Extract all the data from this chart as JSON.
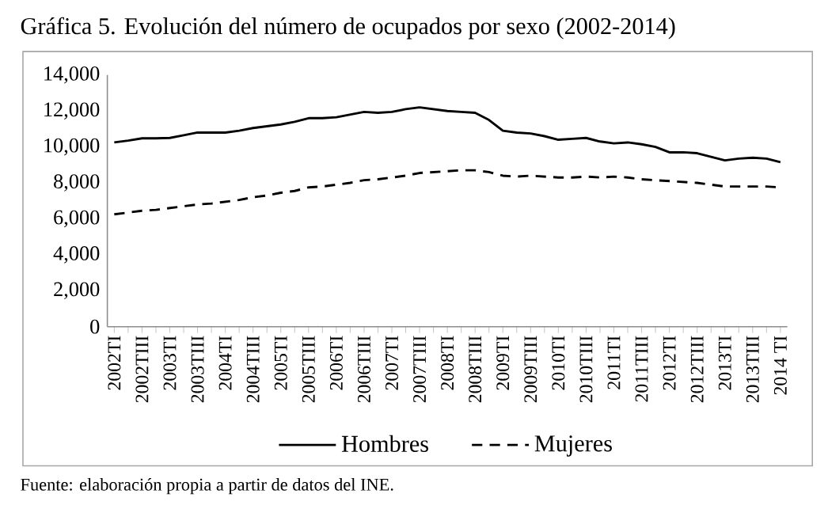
{
  "chart_data": {
    "type": "line",
    "title": "Gráfica 5. Evolución del número de ocupados por sexo (2002-2014)",
    "categories": [
      "2002TI",
      null,
      "2002TIII",
      null,
      "2003TI",
      null,
      "2003TIII",
      null,
      "2004TI",
      null,
      "2004TIII",
      null,
      "2005TI",
      null,
      "2005TIII",
      null,
      "2006TI",
      null,
      "2006TIII",
      null,
      "2007TI",
      null,
      "2007TIII",
      null,
      "2008TI",
      null,
      "2008TIII",
      null,
      "2009TI",
      null,
      "2009TIII",
      null,
      "2010TI",
      null,
      "2010TIII",
      null,
      "2011TI",
      null,
      "2011TIII",
      null,
      "2012TI",
      null,
      "2012TIII",
      null,
      "2013TI",
      null,
      "2013TIII",
      null,
      "2014 TI"
    ],
    "series": [
      {
        "name": "Hombres",
        "color": "#000000",
        "line_style": "solid",
        "values": [
          10250,
          10350,
          10480,
          10480,
          10500,
          10650,
          10800,
          10800,
          10800,
          10900,
          11050,
          11150,
          11250,
          11400,
          11600,
          11600,
          11650,
          11800,
          11950,
          11900,
          11950,
          12100,
          12200,
          12100,
          12000,
          11950,
          11900,
          11500,
          10900,
          10800,
          10750,
          10600,
          10400,
          10450,
          10500,
          10300,
          10200,
          10250,
          10150,
          10000,
          9700,
          9700,
          9650,
          9450,
          9250,
          9350,
          9400,
          9350,
          9150
        ]
      },
      {
        "name": "Mujeres",
        "color": "#000000",
        "line_style": "dashed",
        "values": [
          6250,
          6350,
          6450,
          6500,
          6600,
          6700,
          6800,
          6850,
          6950,
          7050,
          7200,
          7300,
          7450,
          7550,
          7750,
          7800,
          7900,
          8000,
          8150,
          8200,
          8300,
          8400,
          8550,
          8600,
          8650,
          8700,
          8700,
          8600,
          8400,
          8350,
          8400,
          8350,
          8300,
          8300,
          8350,
          8300,
          8350,
          8300,
          8200,
          8150,
          8100,
          8050,
          8000,
          7900,
          7800,
          7800,
          7800,
          7800,
          7750
        ]
      }
    ],
    "ylim": [
      0,
      14000
    ],
    "yticks": [
      {
        "value": 0,
        "label": "0"
      },
      {
        "value": 2000,
        "label": "2,000"
      },
      {
        "value": 4000,
        "label": "4,000"
      },
      {
        "value": 6000,
        "label": "6,000"
      },
      {
        "value": 8000,
        "label": "8,000"
      },
      {
        "value": 10000,
        "label": "10,000"
      },
      {
        "value": 12000,
        "label": "12,000"
      },
      {
        "value": 14000,
        "label": "14,000"
      }
    ],
    "legend": "bottom",
    "grid": false,
    "marker": "none",
    "annotations": [
      "Fuente: elaboración propia a partir de datos del INE."
    ]
  }
}
